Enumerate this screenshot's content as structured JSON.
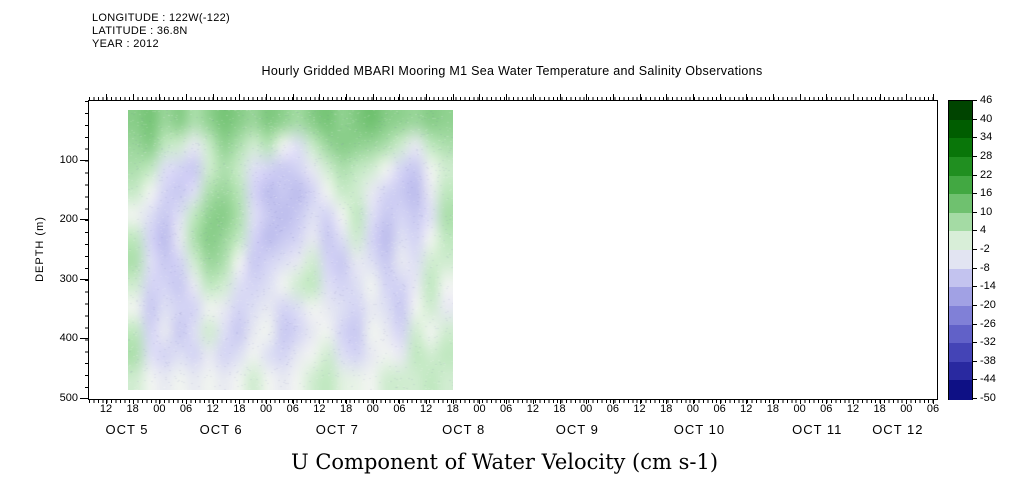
{
  "header": {
    "longitude": "LONGITUDE : 122W(-122)",
    "latitude": "LATITUDE : 36.8N",
    "year": "YEAR : 2012"
  },
  "title": "Hourly Gridded MBARI Mooring M1 Sea Water Temperature and Salinity Observations",
  "footer_title": "U Component of Water Velocity (cm s-1)",
  "y_axis": {
    "label": "DEPTH (m)",
    "ticks": [
      100,
      200,
      300,
      400,
      500
    ],
    "min": 0,
    "max": 500,
    "minor_interval": 20
  },
  "x_axis": {
    "hour_ticks": [
      "12",
      "18",
      "00",
      "06",
      "12",
      "18",
      "00",
      "06",
      "12",
      "18",
      "00",
      "06",
      "12",
      "18",
      "00",
      "06",
      "12",
      "18",
      "00",
      "06",
      "12",
      "18",
      "00",
      "06",
      "12",
      "18",
      "00",
      "06",
      "12",
      "18",
      "00",
      "06"
    ],
    "date_labels": [
      "OCT 5",
      "OCT 6",
      "OCT 7",
      "OCT 8",
      "OCT 9",
      "OCT 10",
      "OCT 11",
      "OCT 12"
    ],
    "date_fracs": [
      0.046,
      0.157,
      0.294,
      0.443,
      0.577,
      0.721,
      0.86,
      0.955
    ]
  },
  "colorbar": {
    "labels": [
      46,
      40,
      34,
      28,
      22,
      16,
      10,
      4,
      -2,
      -8,
      -14,
      -20,
      -26,
      -32,
      -38,
      -44,
      -50
    ],
    "stops": [
      {
        "v": 46,
        "c": "#003800"
      },
      {
        "v": 40,
        "c": "#005000"
      },
      {
        "v": 34,
        "c": "#006900"
      },
      {
        "v": 28,
        "c": "#118211"
      },
      {
        "v": 22,
        "c": "#2f9b2f"
      },
      {
        "v": 16,
        "c": "#55b455"
      },
      {
        "v": 10,
        "c": "#88cd88"
      },
      {
        "v": 4,
        "c": "#c0e8c0"
      },
      {
        "v": -2,
        "c": "#f0f4f0"
      },
      {
        "v": -8,
        "c": "#d4d4f4"
      },
      {
        "v": -14,
        "c": "#b2b2ea"
      },
      {
        "v": -20,
        "c": "#9090de"
      },
      {
        "v": -26,
        "c": "#7070d0"
      },
      {
        "v": -32,
        "c": "#5252c0"
      },
      {
        "v": -38,
        "c": "#3636ac"
      },
      {
        "v": -44,
        "c": "#1c1c94"
      },
      {
        "v": -50,
        "c": "#000475"
      }
    ]
  },
  "chart_data": {
    "type": "heatmap",
    "title": "Hourly Gridded MBARI Mooring M1 Sea Water Temperature and Salinity Observations",
    "value_label": "U Component of Water Velocity (cm s-1)",
    "ylabel": "DEPTH (m)",
    "xlabel": "Time, OCT 5 - OCT 12 2012, 6-hourly tick labels",
    "depth_range_m": [
      0,
      500
    ],
    "value_range": [
      -50,
      46
    ],
    "data_time_start": "OCT 5 ~16:00",
    "data_time_end": "OCT 8 ~17:00",
    "grid_rows_depth": 12,
    "grid_cols_time": 22,
    "values": [
      [
        10,
        12,
        8,
        10,
        6,
        9,
        12,
        10,
        8,
        11,
        9,
        7,
        10,
        12,
        9,
        11,
        13,
        10,
        9,
        8,
        10,
        9
      ],
      [
        8,
        10,
        4,
        2,
        -4,
        3,
        9,
        6,
        2,
        5,
        -2,
        -6,
        3,
        8,
        10,
        9,
        8,
        6,
        2,
        -4,
        4,
        6
      ],
      [
        6,
        4,
        -6,
        -8,
        -10,
        2,
        6,
        3,
        -6,
        -8,
        -10,
        -8,
        -4,
        2,
        6,
        4,
        2,
        -2,
        -8,
        -10,
        -2,
        2
      ],
      [
        3,
        -2,
        -8,
        -10,
        -6,
        6,
        8,
        5,
        -8,
        -12,
        -10,
        -12,
        -8,
        -2,
        3,
        2,
        -4,
        -8,
        -10,
        -12,
        -4,
        4
      ],
      [
        -2,
        -6,
        -10,
        -6,
        4,
        9,
        10,
        6,
        -6,
        -10,
        -12,
        -10,
        -6,
        -8,
        -2,
        4,
        -6,
        -10,
        -8,
        -10,
        -6,
        6
      ],
      [
        4,
        -8,
        -12,
        -4,
        6,
        10,
        8,
        4,
        -8,
        -12,
        -10,
        -8,
        -4,
        -10,
        -6,
        2,
        -8,
        -12,
        -6,
        -8,
        -2,
        4
      ],
      [
        6,
        -6,
        -10,
        -8,
        2,
        8,
        6,
        -2,
        -10,
        -8,
        -6,
        -4,
        2,
        -8,
        -10,
        -4,
        -6,
        -10,
        -4,
        -6,
        2,
        2
      ],
      [
        2,
        -8,
        -8,
        -10,
        -4,
        4,
        2,
        -6,
        -8,
        -6,
        -2,
        2,
        4,
        -6,
        -8,
        -6,
        -2,
        -8,
        -8,
        -4,
        4,
        -2
      ],
      [
        -2,
        -10,
        -6,
        -8,
        -8,
        -2,
        -4,
        -8,
        -6,
        -4,
        -8,
        -6,
        -2,
        -4,
        -6,
        -8,
        -4,
        -6,
        -10,
        -2,
        2,
        -4
      ],
      [
        4,
        -8,
        -4,
        -10,
        -6,
        2,
        -6,
        -10,
        -4,
        -2,
        -10,
        -8,
        -4,
        -2,
        -8,
        -10,
        -2,
        -4,
        -8,
        2,
        -2,
        2
      ],
      [
        6,
        -6,
        -8,
        -6,
        -8,
        -4,
        -8,
        -6,
        -2,
        -6,
        -8,
        -4,
        -2,
        2,
        -6,
        -8,
        -4,
        -2,
        -4,
        4,
        2,
        4
      ],
      [
        2,
        -2,
        -4,
        -2,
        -4,
        -2,
        -4,
        -2,
        2,
        -2,
        -4,
        -2,
        2,
        4,
        0,
        -1,
        -2,
        2,
        2,
        2,
        4,
        2
      ]
    ]
  }
}
